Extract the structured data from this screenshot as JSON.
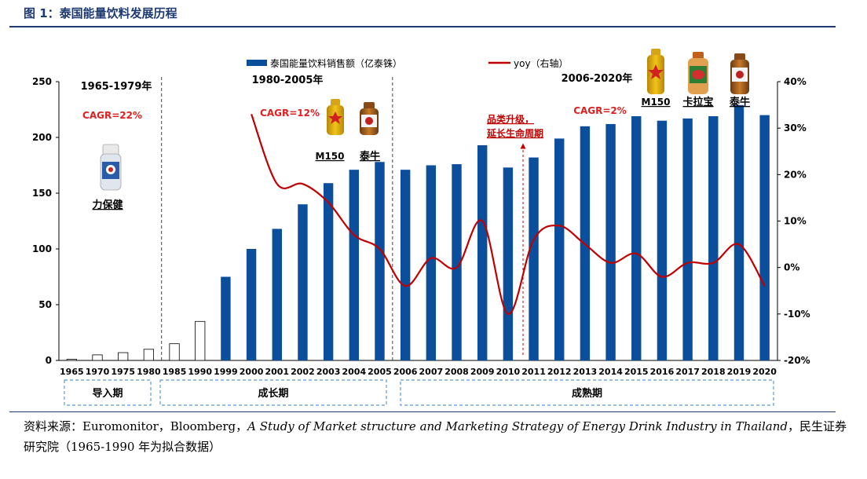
{
  "figure_title": "图 1：泰国能量饮料发展历程",
  "chart_data": {
    "type": "bar+line",
    "categories": [
      "1965",
      "1970",
      "1975",
      "1980",
      "1985",
      "1990",
      "1999",
      "2000",
      "2001",
      "2002",
      "2003",
      "2004",
      "2005",
      "2006",
      "2007",
      "2008",
      "2009",
      "2010",
      "2011",
      "2012",
      "2013",
      "2014",
      "2015",
      "2016",
      "2017",
      "2018",
      "2019",
      "2020"
    ],
    "series": [
      {
        "name": "泰国能量饮料销售额（亿泰铢）",
        "axis": "left",
        "type": "bar",
        "values": [
          1,
          5,
          7,
          10,
          15,
          35,
          75,
          100,
          118,
          140,
          159,
          171,
          178,
          171,
          175,
          176,
          193,
          173,
          182,
          199,
          210,
          212,
          219,
          215,
          217,
          219,
          229,
          220
        ],
        "estimated_flags": [
          true,
          true,
          true,
          true,
          true,
          true,
          false,
          false,
          false,
          false,
          false,
          false,
          false,
          false,
          false,
          false,
          false,
          false,
          false,
          false,
          false,
          false,
          false,
          false,
          false,
          false,
          false,
          false
        ]
      },
      {
        "name": "yoy（右轴）",
        "axis": "right",
        "type": "line",
        "unit": "%",
        "x": [
          "2000",
          "2001",
          "2002",
          "2003",
          "2004",
          "2005",
          "2006",
          "2007",
          "2008",
          "2009",
          "2010",
          "2011",
          "2012",
          "2013",
          "2014",
          "2015",
          "2016",
          "2017",
          "2018",
          "2019",
          "2020"
        ],
        "values": [
          33,
          18,
          18,
          14,
          7,
          4,
          -4,
          2,
          0,
          10,
          -10,
          6,
          9,
          5,
          1,
          3,
          -2,
          1,
          1,
          5,
          -4
        ]
      }
    ],
    "y_left": {
      "min": 0,
      "max": 250,
      "ticks": [
        "0",
        "50",
        "100",
        "150",
        "200",
        "250"
      ]
    },
    "y_right": {
      "min": -20,
      "max": 40,
      "ticks": [
        "40%",
        "30%",
        "20%",
        "10%",
        "0%",
        "-10%",
        "-20%"
      ]
    },
    "periods": [
      {
        "label": "1965-1979年",
        "cagr": "CAGR=22%"
      },
      {
        "label": "1980-2005年",
        "cagr": "CAGR=12%"
      },
      {
        "label": "2006-2020年",
        "cagr": "CAGR=2%"
      }
    ],
    "stages": [
      "导入期",
      "成长期",
      "成熟期"
    ],
    "annotations": {
      "category_upgrade": [
        "品类升级，",
        "延长生命周期"
      ],
      "products": [
        "力保健",
        "M150",
        "泰牛",
        "M150",
        "卡拉宝",
        "泰牛"
      ]
    },
    "legend_position": "top"
  },
  "source": {
    "prefix": "资料来源：Euromonitor，Bloomberg，",
    "italic": "A Study of Market structure and Marketing Strategy of Energy Drink Industry in Thailand",
    "suffix": "，民生证券研究院（1965-1990 年为拟合数据）"
  },
  "colors": {
    "bar": "#0b4f9c",
    "line": "#c00000",
    "cagr": "#e02020",
    "title": "#1f3a73",
    "stage_border": "#5b9bd5"
  }
}
